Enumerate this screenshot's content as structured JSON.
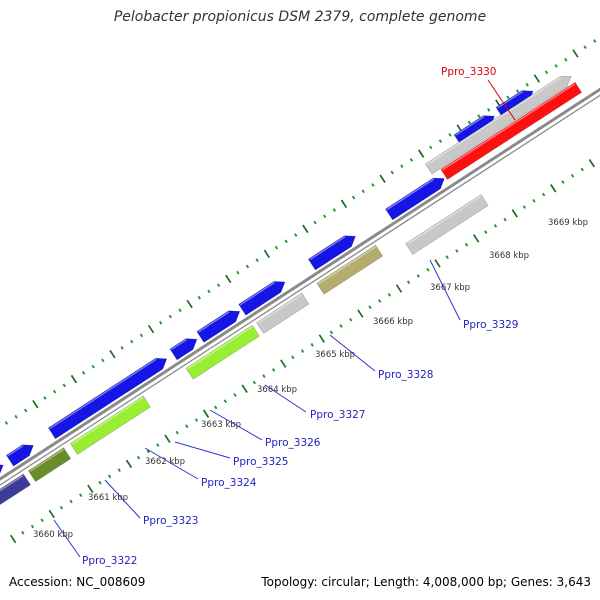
{
  "title": "Pelobacter propionicus DSM 2379, complete genome",
  "footer": {
    "accession": "Accession: NC_008609",
    "stats": "Topology: circular; Length: 4,008,000 bp; Genes: 3,643"
  },
  "colors": {
    "backbone": "#8a8a8a",
    "tick_major": "#1e6b1e",
    "tick_minor": "#1f9a1f",
    "label_default": "#1f1fbf",
    "label_highlight": "#dd0000",
    "leader_default": "#3333cc",
    "leader_highlight": "#cc0000"
  },
  "kbp_labels": [
    "3660 kbp",
    "3661 kbp",
    "3662 kbp",
    "3663 kbp",
    "3664 kbp",
    "3665 kbp",
    "3666 kbp",
    "3667 kbp",
    "3668 kbp",
    "3669 kbp"
  ],
  "genes": [
    {
      "id": "g-a",
      "track": "plus",
      "color": "#1515e6"
    },
    {
      "id": "g-b",
      "track": "plus",
      "color": "#1515e6"
    },
    {
      "id": "g-c",
      "track": "plus",
      "color": "#1515e6"
    },
    {
      "id": "g-d",
      "track": "plus",
      "color": "#1515e6"
    },
    {
      "id": "g-e",
      "track": "plus",
      "color": "#1515e6"
    },
    {
      "id": "g-f",
      "track": "plus",
      "color": "#1515e6"
    },
    {
      "id": "g-g",
      "track": "plus",
      "color": "#1515e6"
    },
    {
      "id": "g-h",
      "track": "plus",
      "color": "#1515e6"
    },
    {
      "id": "g-i",
      "track": "plus",
      "color": "#1515e6"
    },
    {
      "id": "g-j",
      "track": "plus",
      "color": "#1515e6"
    },
    {
      "id": "g-k",
      "track": "plus",
      "color": "#c8c8c8"
    },
    {
      "id": "g-l",
      "track": "minus",
      "color": "#3d3d99"
    },
    {
      "id": "g-m",
      "track": "minus",
      "color": "#6b8c2a"
    },
    {
      "id": "g-n",
      "track": "minus",
      "color": "#99ee33"
    },
    {
      "id": "g-o",
      "track": "minus",
      "color": "#99ee33"
    },
    {
      "id": "g-p",
      "track": "minus",
      "color": "#c8c8c8"
    },
    {
      "id": "g-q",
      "track": "minus",
      "color": "#b5ad6e"
    },
    {
      "id": "g-r",
      "track": "minus",
      "color": "#c8c8c8"
    },
    {
      "id": "g-s",
      "track": "minus",
      "color": "#ff1010"
    }
  ],
  "gene_labels": [
    {
      "text": "Ppro_3322",
      "highlight": false
    },
    {
      "text": "Ppro_3323",
      "highlight": false
    },
    {
      "text": "Ppro_3324",
      "highlight": false
    },
    {
      "text": "Ppro_3325",
      "highlight": false
    },
    {
      "text": "Ppro_3326",
      "highlight": false
    },
    {
      "text": "Ppro_3327",
      "highlight": false
    },
    {
      "text": "Ppro_3328",
      "highlight": false
    },
    {
      "text": "Ppro_3329",
      "highlight": false
    },
    {
      "text": "Ppro_3330",
      "highlight": true
    }
  ]
}
